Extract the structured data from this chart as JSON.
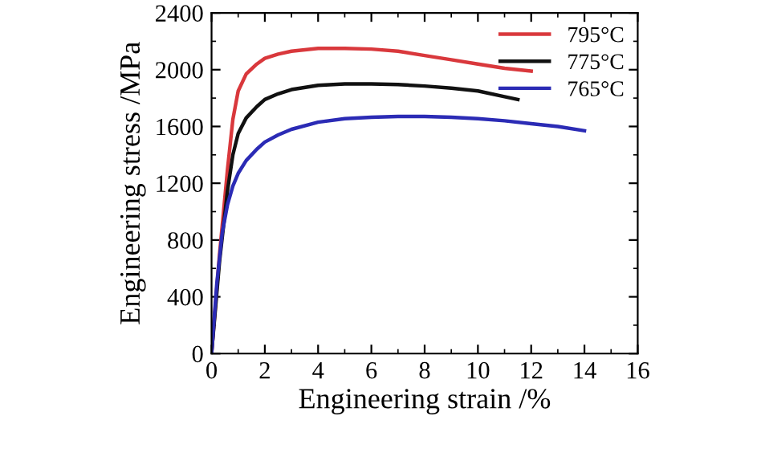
{
  "chart_data": {
    "type": "line",
    "xlabel": "Engineering strain /%",
    "ylabel": "Engineering stress /MPa",
    "xlim": [
      0,
      16
    ],
    "ylim": [
      0,
      2400
    ],
    "xticks": [
      0,
      2,
      4,
      6,
      8,
      10,
      12,
      14,
      16
    ],
    "yticks": [
      0,
      400,
      800,
      1200,
      1600,
      2000,
      2400
    ],
    "grid": false,
    "legend": "top right",
    "marker": "none",
    "line_style": "solid",
    "series": [
      {
        "name": "795°C",
        "color": "#d9383c",
        "x": [
          0,
          0.3,
          0.6,
          0.8,
          1,
          1.3,
          1.7,
          2,
          2.5,
          3,
          4,
          5,
          6,
          7,
          8,
          9,
          10,
          11,
          12
        ],
        "values": [
          0,
          700,
          1300,
          1650,
          1850,
          1970,
          2040,
          2080,
          2110,
          2130,
          2150,
          2150,
          2145,
          2130,
          2100,
          2070,
          2040,
          2010,
          1990
        ]
      },
      {
        "name": "775°C",
        "color": "#111111",
        "x": [
          0,
          0.3,
          0.6,
          0.8,
          1,
          1.3,
          1.7,
          2,
          2.5,
          3,
          4,
          5,
          6,
          7,
          8,
          9,
          10,
          11,
          11.5
        ],
        "values": [
          0,
          650,
          1150,
          1400,
          1550,
          1660,
          1740,
          1790,
          1830,
          1860,
          1890,
          1900,
          1900,
          1895,
          1885,
          1870,
          1850,
          1810,
          1790
        ]
      },
      {
        "name": "765°C",
        "color": "#2b2bb5",
        "x": [
          0,
          0.2,
          0.4,
          0.6,
          0.8,
          1,
          1.3,
          1.7,
          2,
          2.5,
          3,
          4,
          5,
          6,
          7,
          8,
          9,
          10,
          11,
          12,
          13,
          14
        ],
        "values": [
          0,
          500,
          850,
          1050,
          1180,
          1270,
          1360,
          1440,
          1490,
          1540,
          1580,
          1630,
          1655,
          1665,
          1670,
          1670,
          1665,
          1655,
          1640,
          1620,
          1600,
          1570
        ]
      }
    ]
  }
}
